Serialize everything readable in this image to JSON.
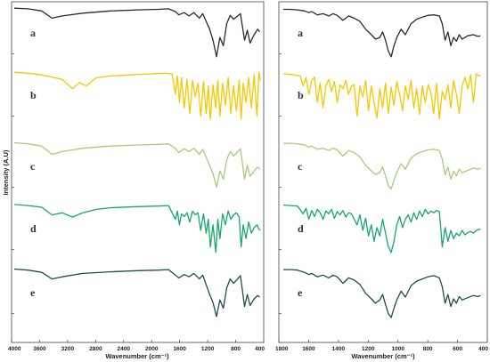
{
  "chart_data": [
    {
      "type": "line",
      "title": "",
      "xlabel": "Wavenumber (cm⁻¹)",
      "ylabel": "Intensity (A.U)",
      "xlim": [
        4000,
        400
      ],
      "x_ticks": [
        "4000",
        "3600",
        "3200",
        "2800",
        "2400",
        "2000",
        "1600",
        "1200",
        "800",
        "400"
      ],
      "series": [
        {
          "name": "a",
          "color": "#2b2b2b",
          "x": [
            4000,
            3800,
            3600,
            3450,
            3300,
            3000,
            2600,
            2200,
            1900,
            1750,
            1650,
            1600,
            1520,
            1450,
            1380,
            1300,
            1250,
            1150,
            1100,
            1050,
            1000,
            950,
            900,
            850,
            800,
            700,
            640,
            600,
            560,
            500,
            450,
            420
          ],
          "y": [
            98,
            97,
            93,
            80,
            84,
            89,
            93,
            95,
            96,
            97,
            92,
            86,
            90,
            84,
            90,
            80,
            88,
            60,
            40,
            10,
            45,
            30,
            70,
            85,
            78,
            88,
            40,
            58,
            35,
            50,
            60,
            55
          ]
        },
        {
          "name": "b",
          "color": "#f5c800",
          "x": [
            4000,
            3800,
            3600,
            3300,
            3150,
            3050,
            2950,
            2800,
            2600,
            2300,
            2000,
            1800,
            1700,
            1650,
            1620,
            1590,
            1560,
            1520,
            1480,
            1440,
            1400,
            1360,
            1320,
            1280,
            1240,
            1200,
            1170,
            1140,
            1100,
            1060,
            1030,
            1000,
            960,
            920,
            880,
            840,
            800,
            760,
            720,
            690,
            660,
            620,
            580,
            540,
            500,
            460,
            430,
            410
          ],
          "y": [
            95,
            93,
            90,
            82,
            65,
            76,
            70,
            85,
            88,
            90,
            92,
            93,
            92,
            55,
            88,
            40,
            85,
            30,
            82,
            20,
            80,
            50,
            75,
            15,
            78,
            20,
            70,
            10,
            72,
            30,
            80,
            15,
            75,
            35,
            85,
            20,
            70,
            25,
            80,
            10,
            75,
            40,
            85,
            30,
            90,
            15,
            95,
            80
          ]
        },
        {
          "name": "c",
          "color": "#a8cc7a",
          "x": [
            4000,
            3800,
            3600,
            3450,
            3300,
            3000,
            2600,
            2200,
            1900,
            1750,
            1650,
            1600,
            1520,
            1450,
            1380,
            1300,
            1250,
            1150,
            1100,
            1050,
            1000,
            950,
            900,
            850,
            800,
            700,
            640,
            600,
            560,
            500,
            450,
            420
          ],
          "y": [
            96,
            94,
            90,
            75,
            80,
            86,
            90,
            92,
            93,
            94,
            86,
            78,
            85,
            80,
            86,
            75,
            84,
            55,
            40,
            15,
            45,
            30,
            65,
            80,
            72,
            85,
            30,
            55,
            35,
            45,
            52,
            48
          ]
        },
        {
          "name": "d",
          "color": "#16a868",
          "x": [
            4000,
            3800,
            3600,
            3450,
            3300,
            3150,
            3000,
            2800,
            2600,
            2200,
            1900,
            1750,
            1650,
            1620,
            1590,
            1560,
            1520,
            1480,
            1440,
            1400,
            1360,
            1320,
            1280,
            1240,
            1200,
            1170,
            1140,
            1100,
            1060,
            1030,
            1000,
            960,
            920,
            880,
            840,
            800,
            760,
            720,
            690,
            660,
            620,
            580,
            540,
            500,
            460,
            430,
            410
          ],
          "y": [
            97,
            95,
            92,
            78,
            82,
            74,
            82,
            88,
            91,
            93,
            94,
            95,
            70,
            85,
            60,
            80,
            75,
            82,
            65,
            85,
            78,
            82,
            50,
            80,
            45,
            70,
            20,
            60,
            10,
            70,
            35,
            80,
            60,
            85,
            70,
            78,
            82,
            75,
            20,
            60,
            35,
            65,
            45,
            55,
            60,
            52,
            50
          ]
        },
        {
          "name": "e",
          "color": "#1e4e4a",
          "x": [
            4000,
            3800,
            3600,
            3450,
            3300,
            3000,
            2600,
            2200,
            1900,
            1750,
            1650,
            1600,
            1520,
            1450,
            1380,
            1300,
            1250,
            1150,
            1100,
            1050,
            1000,
            950,
            900,
            850,
            800,
            700,
            640,
            600,
            560,
            500,
            450,
            420
          ],
          "y": [
            96,
            94,
            90,
            78,
            82,
            88,
            91,
            93,
            94,
            95,
            85,
            80,
            86,
            82,
            88,
            78,
            85,
            50,
            35,
            10,
            40,
            25,
            62,
            78,
            70,
            84,
            28,
            50,
            30,
            42,
            48,
            45
          ]
        }
      ]
    },
    {
      "type": "line",
      "title": "",
      "xlabel": "Wavenumber (cm⁻¹)",
      "ylabel": "",
      "xlim": [
        1800,
        400
      ],
      "x_ticks": [
        "1800",
        "1600",
        "1400",
        "1200",
        "1000",
        "800",
        "600",
        "400"
      ],
      "series": [
        {
          "name": "a",
          "color": "#2b2b2b",
          "x": [
            1800,
            1750,
            1700,
            1650,
            1620,
            1600,
            1560,
            1520,
            1480,
            1450,
            1420,
            1380,
            1340,
            1300,
            1260,
            1220,
            1180,
            1150,
            1120,
            1100,
            1080,
            1060,
            1040,
            1020,
            1000,
            970,
            940,
            900,
            860,
            820,
            780,
            740,
            700,
            680,
            660,
            640,
            620,
            600,
            580,
            560,
            540,
            500,
            460,
            430,
            410
          ],
          "y": [
            96,
            96,
            95,
            93,
            90,
            92,
            86,
            88,
            84,
            88,
            85,
            76,
            84,
            80,
            74,
            60,
            50,
            42,
            45,
            55,
            40,
            20,
            10,
            30,
            45,
            60,
            50,
            70,
            78,
            82,
            85,
            86,
            84,
            70,
            40,
            55,
            30,
            45,
            38,
            50,
            42,
            48,
            50,
            47,
            48
          ]
        },
        {
          "name": "b",
          "color": "#f5c800",
          "x": [
            1800,
            1760,
            1720,
            1680,
            1660,
            1640,
            1620,
            1600,
            1580,
            1560,
            1540,
            1520,
            1500,
            1480,
            1460,
            1440,
            1420,
            1400,
            1380,
            1360,
            1340,
            1320,
            1300,
            1280,
            1260,
            1240,
            1220,
            1200,
            1180,
            1160,
            1140,
            1120,
            1100,
            1080,
            1060,
            1040,
            1020,
            1000,
            980,
            960,
            940,
            920,
            900,
            880,
            860,
            840,
            820,
            800,
            780,
            760,
            740,
            720,
            700,
            680,
            660,
            640,
            620,
            600,
            580,
            560,
            540,
            520,
            500,
            480,
            460,
            440,
            420,
            410
          ],
          "y": [
            92,
            91,
            90,
            88,
            70,
            85,
            55,
            80,
            86,
            40,
            75,
            30,
            70,
            82,
            60,
            78,
            40,
            72,
            65,
            80,
            55,
            70,
            72,
            15,
            70,
            50,
            80,
            25,
            70,
            40,
            12,
            65,
            30,
            75,
            20,
            68,
            35,
            78,
            55,
            25,
            70,
            45,
            80,
            30,
            65,
            18,
            70,
            40,
            72,
            58,
            20,
            75,
            10,
            60,
            45,
            72,
            30,
            80,
            55,
            20,
            70,
            85,
            65,
            90,
            40,
            92,
            88,
            90
          ]
        },
        {
          "name": "c",
          "color": "#a8cc7a",
          "x": [
            1800,
            1750,
            1700,
            1650,
            1620,
            1600,
            1560,
            1520,
            1480,
            1450,
            1420,
            1380,
            1340,
            1300,
            1260,
            1220,
            1180,
            1150,
            1120,
            1100,
            1080,
            1060,
            1040,
            1020,
            1000,
            970,
            940,
            900,
            860,
            820,
            780,
            740,
            700,
            680,
            660,
            640,
            620,
            600,
            580,
            560,
            540,
            500,
            460,
            430,
            410
          ],
          "y": [
            95,
            95,
            94,
            92,
            88,
            90,
            84,
            86,
            82,
            86,
            83,
            72,
            82,
            78,
            70,
            55,
            45,
            38,
            42,
            52,
            36,
            18,
            12,
            28,
            42,
            58,
            48,
            68,
            76,
            80,
            83,
            84,
            82,
            66,
            38,
            52,
            30,
            44,
            36,
            48,
            42,
            46,
            50,
            48,
            50
          ]
        },
        {
          "name": "d",
          "color": "#16a868",
          "x": [
            1800,
            1750,
            1700,
            1660,
            1640,
            1620,
            1600,
            1580,
            1560,
            1540,
            1520,
            1500,
            1480,
            1460,
            1440,
            1420,
            1400,
            1380,
            1360,
            1340,
            1320,
            1300,
            1280,
            1260,
            1240,
            1220,
            1200,
            1180,
            1160,
            1140,
            1120,
            1100,
            1080,
            1060,
            1040,
            1020,
            1000,
            980,
            960,
            940,
            920,
            900,
            880,
            860,
            840,
            820,
            800,
            780,
            760,
            740,
            720,
            700,
            680,
            660,
            640,
            620,
            600,
            580,
            560,
            540,
            520,
            500,
            480,
            460,
            440,
            420,
            410
          ],
          "y": [
            96,
            95,
            94,
            80,
            90,
            70,
            86,
            75,
            88,
            82,
            70,
            85,
            80,
            88,
            72,
            84,
            78,
            86,
            74,
            82,
            80,
            70,
            60,
            78,
            50,
            72,
            40,
            60,
            30,
            55,
            40,
            70,
            45,
            20,
            10,
            30,
            60,
            75,
            55,
            70,
            78,
            65,
            82,
            70,
            85,
            75,
            88,
            80,
            85,
            82,
            86,
            84,
            20,
            55,
            30,
            50,
            35,
            45,
            40,
            50,
            42,
            46,
            48,
            45,
            50,
            52,
            52
          ]
        },
        {
          "name": "e",
          "color": "#1e4e4a",
          "x": [
            1800,
            1750,
            1700,
            1650,
            1620,
            1600,
            1560,
            1520,
            1480,
            1450,
            1420,
            1380,
            1340,
            1300,
            1260,
            1220,
            1180,
            1150,
            1120,
            1100,
            1080,
            1060,
            1040,
            1020,
            1000,
            970,
            940,
            900,
            860,
            820,
            780,
            740,
            700,
            680,
            660,
            640,
            620,
            600,
            580,
            560,
            540,
            500,
            460,
            430,
            410
          ],
          "y": [
            95,
            95,
            94,
            90,
            86,
            88,
            82,
            85,
            80,
            85,
            82,
            70,
            80,
            76,
            68,
            52,
            42,
            34,
            40,
            50,
            32,
            15,
            8,
            25,
            40,
            56,
            45,
            66,
            74,
            78,
            82,
            84,
            80,
            64,
            34,
            50,
            28,
            42,
            34,
            46,
            40,
            44,
            48,
            46,
            48
          ]
        }
      ]
    }
  ]
}
